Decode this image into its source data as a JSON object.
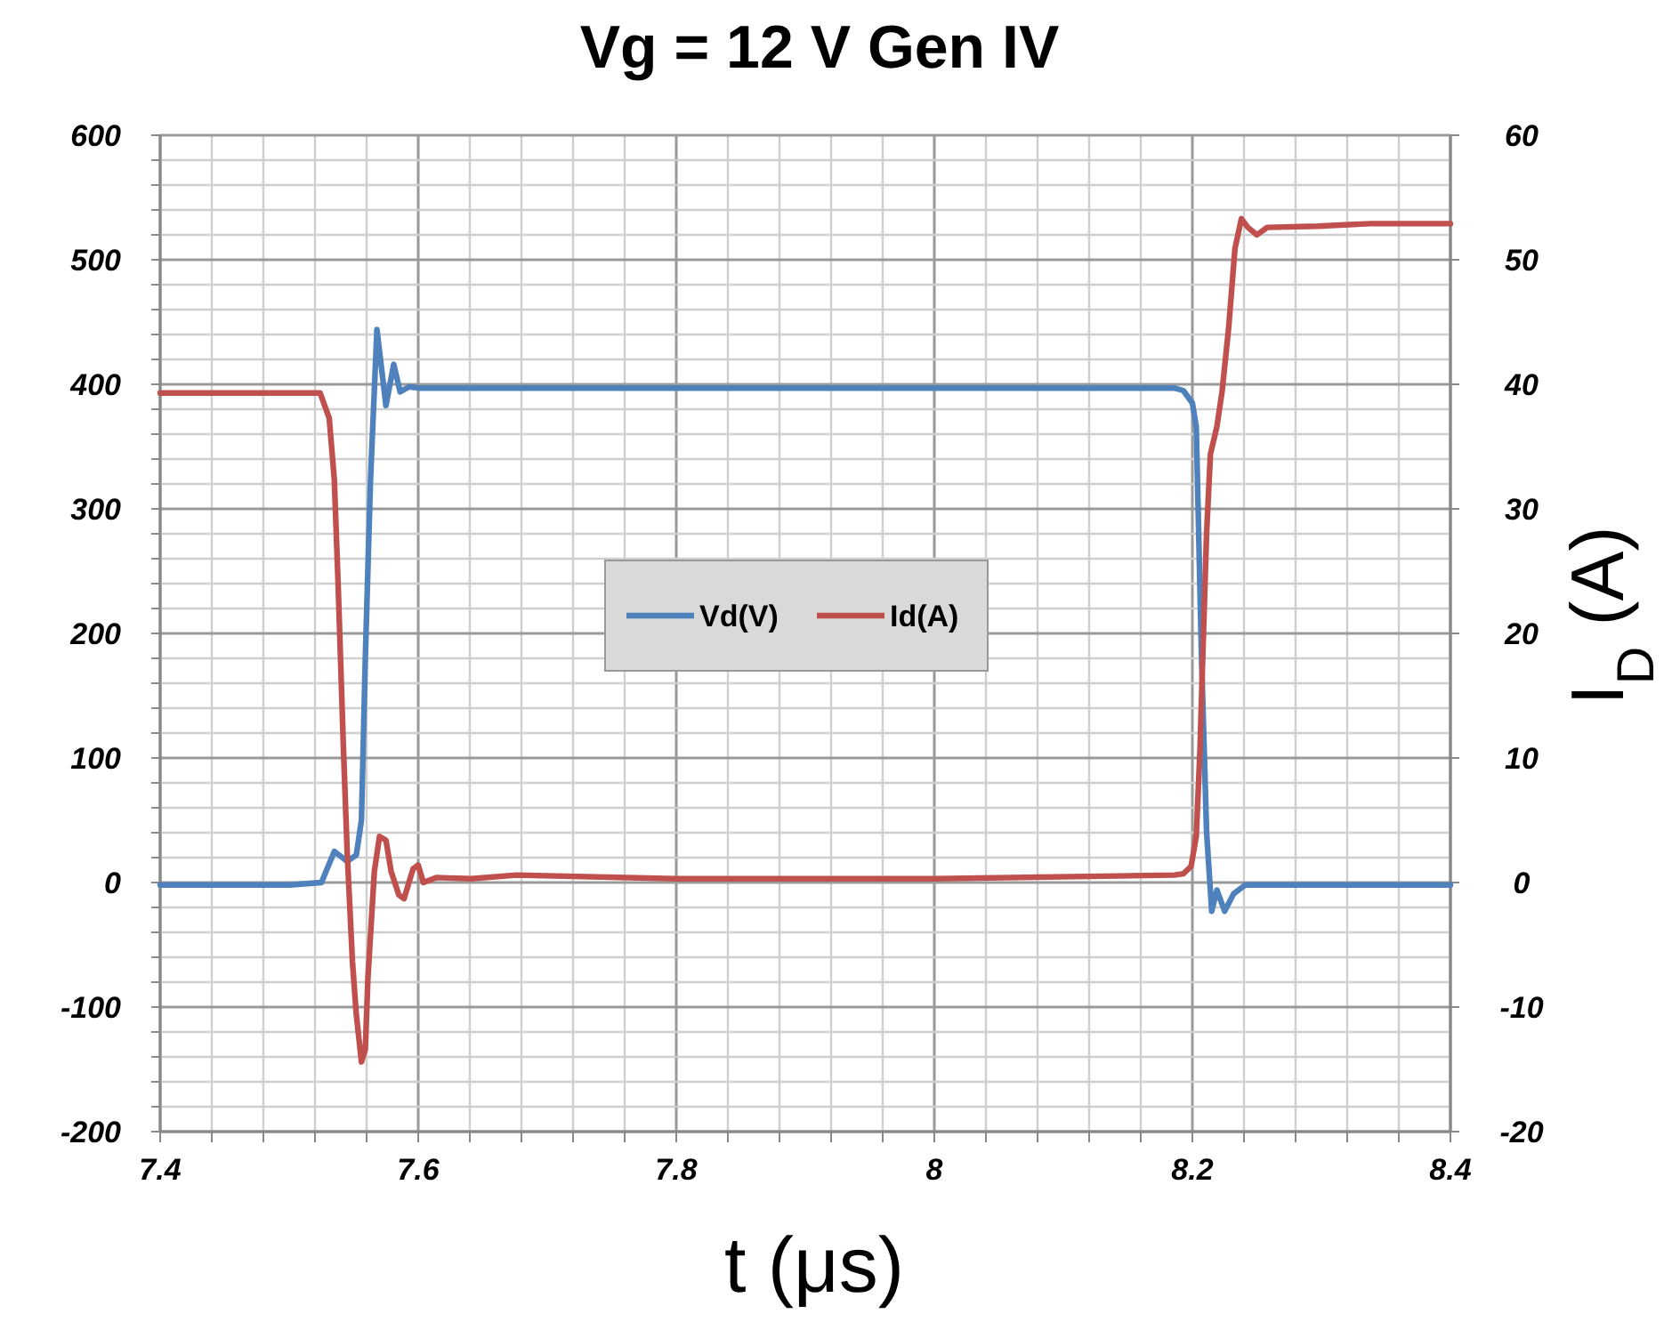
{
  "chart_data": {
    "type": "line",
    "title": "Vg = 12 V Gen IV",
    "xlabel": "t (μs)",
    "y2label": "I$_{D}$ (A)",
    "xlim": [
      7.4,
      8.4
    ],
    "xticks": [
      7.4,
      {
        "value": 7.44,
        "label": null
      },
      {
        "value": 7.48,
        "label": null
      },
      {
        "value": 7.52,
        "label": null
      },
      {
        "value": 7.56,
        "label": null
      },
      7.6,
      {
        "value": 7.64,
        "label": null
      },
      {
        "value": 7.68,
        "label": null
      },
      {
        "value": 7.72,
        "label": null
      },
      {
        "value": 7.76,
        "label": null
      },
      7.8,
      {
        "value": 7.84,
        "label": null
      },
      {
        "value": 7.88,
        "label": null
      },
      {
        "value": 7.92,
        "label": null
      },
      {
        "value": 7.96,
        "label": null
      },
      8,
      {
        "value": 8.04,
        "label": null
      },
      {
        "value": 8.08,
        "label": null
      },
      {
        "value": 8.12,
        "label": null
      },
      {
        "value": 8.16,
        "label": null
      },
      8.2,
      {
        "value": 8.24,
        "label": null
      },
      {
        "value": 8.28,
        "label": null
      },
      {
        "value": 8.32,
        "label": null
      },
      {
        "value": 8.36,
        "label": null
      },
      8.4
    ],
    "ylim": [
      -200,
      600
    ],
    "yticks": [
      -200,
      {
        "value": -180,
        "label": null
      },
      {
        "value": -160,
        "label": null
      },
      {
        "value": -140,
        "label": null
      },
      {
        "value": -120,
        "label": null
      },
      -100,
      {
        "value": -80,
        "label": null
      },
      {
        "value": -60,
        "label": null
      },
      {
        "value": -40,
        "label": null
      },
      {
        "value": -20,
        "label": null
      },
      0,
      {
        "value": 20,
        "label": null
      },
      {
        "value": 40,
        "label": null
      },
      {
        "value": 60,
        "label": null
      },
      {
        "value": 80,
        "label": null
      },
      100,
      {
        "value": 120,
        "label": null
      },
      {
        "value": 140,
        "label": null
      },
      {
        "value": 160,
        "label": null
      },
      {
        "value": 180,
        "label": null
      },
      200,
      {
        "value": 220,
        "label": null
      },
      {
        "value": 240,
        "label": null
      },
      {
        "value": 260,
        "label": null
      },
      {
        "value": 280,
        "label": null
      },
      300,
      {
        "value": 320,
        "label": null
      },
      {
        "value": 340,
        "label": null
      },
      {
        "value": 360,
        "label": null
      },
      {
        "value": 380,
        "label": null
      },
      400,
      {
        "value": 420,
        "label": null
      },
      {
        "value": 440,
        "label": null
      },
      {
        "value": 460,
        "label": null
      },
      {
        "value": 480,
        "label": null
      },
      500,
      {
        "value": 520,
        "label": null
      },
      {
        "value": 540,
        "label": null
      },
      {
        "value": 560,
        "label": null
      },
      {
        "value": 580,
        "label": null
      },
      600
    ],
    "y2lim": [
      -20,
      60
    ],
    "y2ticks": [
      -20,
      -10,
      0,
      10,
      20,
      30,
      40,
      50,
      60
    ],
    "grid": true,
    "legend": "center",
    "marker": "none",
    "line_style": "solid",
    "series": [
      {
        "name": "Vd(V)",
        "color": "#4f81bd",
        "x": [
          7.4,
          7.45,
          7.5,
          7.525,
          7.535,
          7.545,
          7.552,
          7.556,
          7.559,
          7.563,
          7.568,
          7.575,
          7.581,
          7.586,
          7.593,
          7.6,
          7.7,
          7.8,
          7.9,
          8.0,
          8.1,
          8.186,
          8.193,
          8.2,
          8.203,
          8.207,
          8.211,
          8.215,
          8.219,
          8.225,
          8.232,
          8.241,
          8.3,
          8.4
        ],
        "values": [
          -2,
          -2,
          -2,
          0,
          25,
          17,
          22,
          50,
          180,
          323,
          444,
          383,
          416,
          394,
          398,
          397,
          397,
          397,
          397,
          397,
          397,
          397,
          395,
          385,
          366,
          184,
          41,
          -23,
          -6,
          -23,
          -9,
          -2,
          -2,
          -2
        ]
      },
      {
        "name": "Id(A)",
        "color": "#c0504d",
        "axis": "y2",
        "x": [
          7.4,
          7.45,
          7.5,
          7.524,
          7.531,
          7.535,
          7.538,
          7.542,
          7.545,
          7.549,
          7.552,
          7.556,
          7.559,
          7.561,
          7.566,
          7.57,
          7.575,
          7.579,
          7.585,
          7.589,
          7.596,
          7.6,
          7.604,
          7.614,
          7.641,
          7.676,
          7.8,
          8.0,
          8.186,
          8.193,
          8.199,
          8.203,
          8.206,
          8.208,
          8.211,
          8.214,
          8.219,
          8.223,
          8.228,
          8.233,
          8.238,
          8.243,
          8.25,
          8.258,
          8.297,
          8.338,
          8.4
        ],
        "values": [
          39.3,
          39.3,
          39.3,
          39.3,
          37.3,
          32.3,
          23.7,
          10.9,
          2.3,
          -6.3,
          -10.6,
          -14.4,
          -13.4,
          -7.7,
          0.9,
          3.7,
          3.4,
          0.9,
          -1,
          -1.3,
          1.1,
          1.4,
          0,
          0.4,
          0.3,
          0.6,
          0.3,
          0.3,
          0.6,
          0.7,
          1.3,
          3.7,
          10.9,
          18,
          28,
          34.4,
          36.6,
          39.4,
          44.4,
          50.9,
          53.3,
          52.6,
          52,
          52.6,
          52.7,
          52.9,
          52.9
        ]
      }
    ]
  }
}
